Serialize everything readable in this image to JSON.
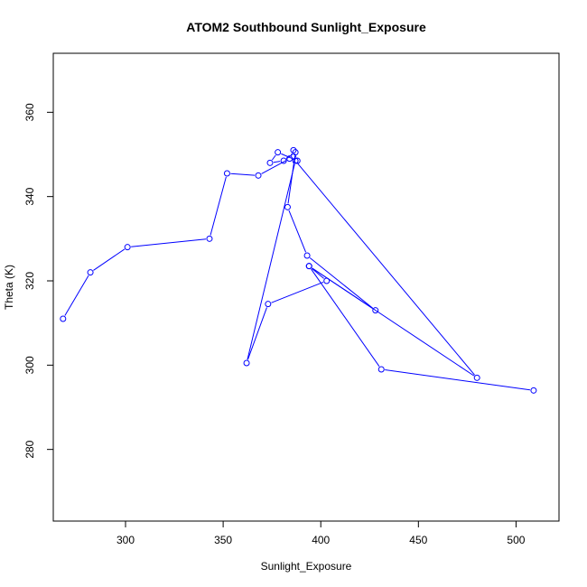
{
  "chart_data": {
    "type": "line",
    "title": "ATOM2 Southbound Sunlight_Exposure",
    "xlabel": "Sunlight_Exposure",
    "ylabel": "Theta (K)",
    "xlim": [
      263,
      522
    ],
    "ylim": [
      263,
      374
    ],
    "xticks": [
      300,
      350,
      400,
      450,
      500
    ],
    "yticks": [
      280,
      300,
      320,
      340,
      360
    ],
    "grid": false,
    "color": "#0000ff",
    "markers": "open-circle",
    "series": [
      {
        "x": [
          268,
          282,
          301,
          343,
          352,
          368,
          384,
          386,
          388,
          378,
          374,
          381,
          387,
          383,
          393,
          428,
          394,
          403,
          373,
          362,
          387,
          480,
          394,
          431,
          509
        ],
        "y": [
          311,
          322,
          328,
          330,
          345.5,
          345,
          349,
          351,
          348.5,
          350.5,
          348,
          348.5,
          350.5,
          337.5,
          326,
          313,
          323.5,
          320,
          314.5,
          300.5,
          348.5,
          297,
          323.5,
          299,
          294
        ]
      }
    ]
  }
}
